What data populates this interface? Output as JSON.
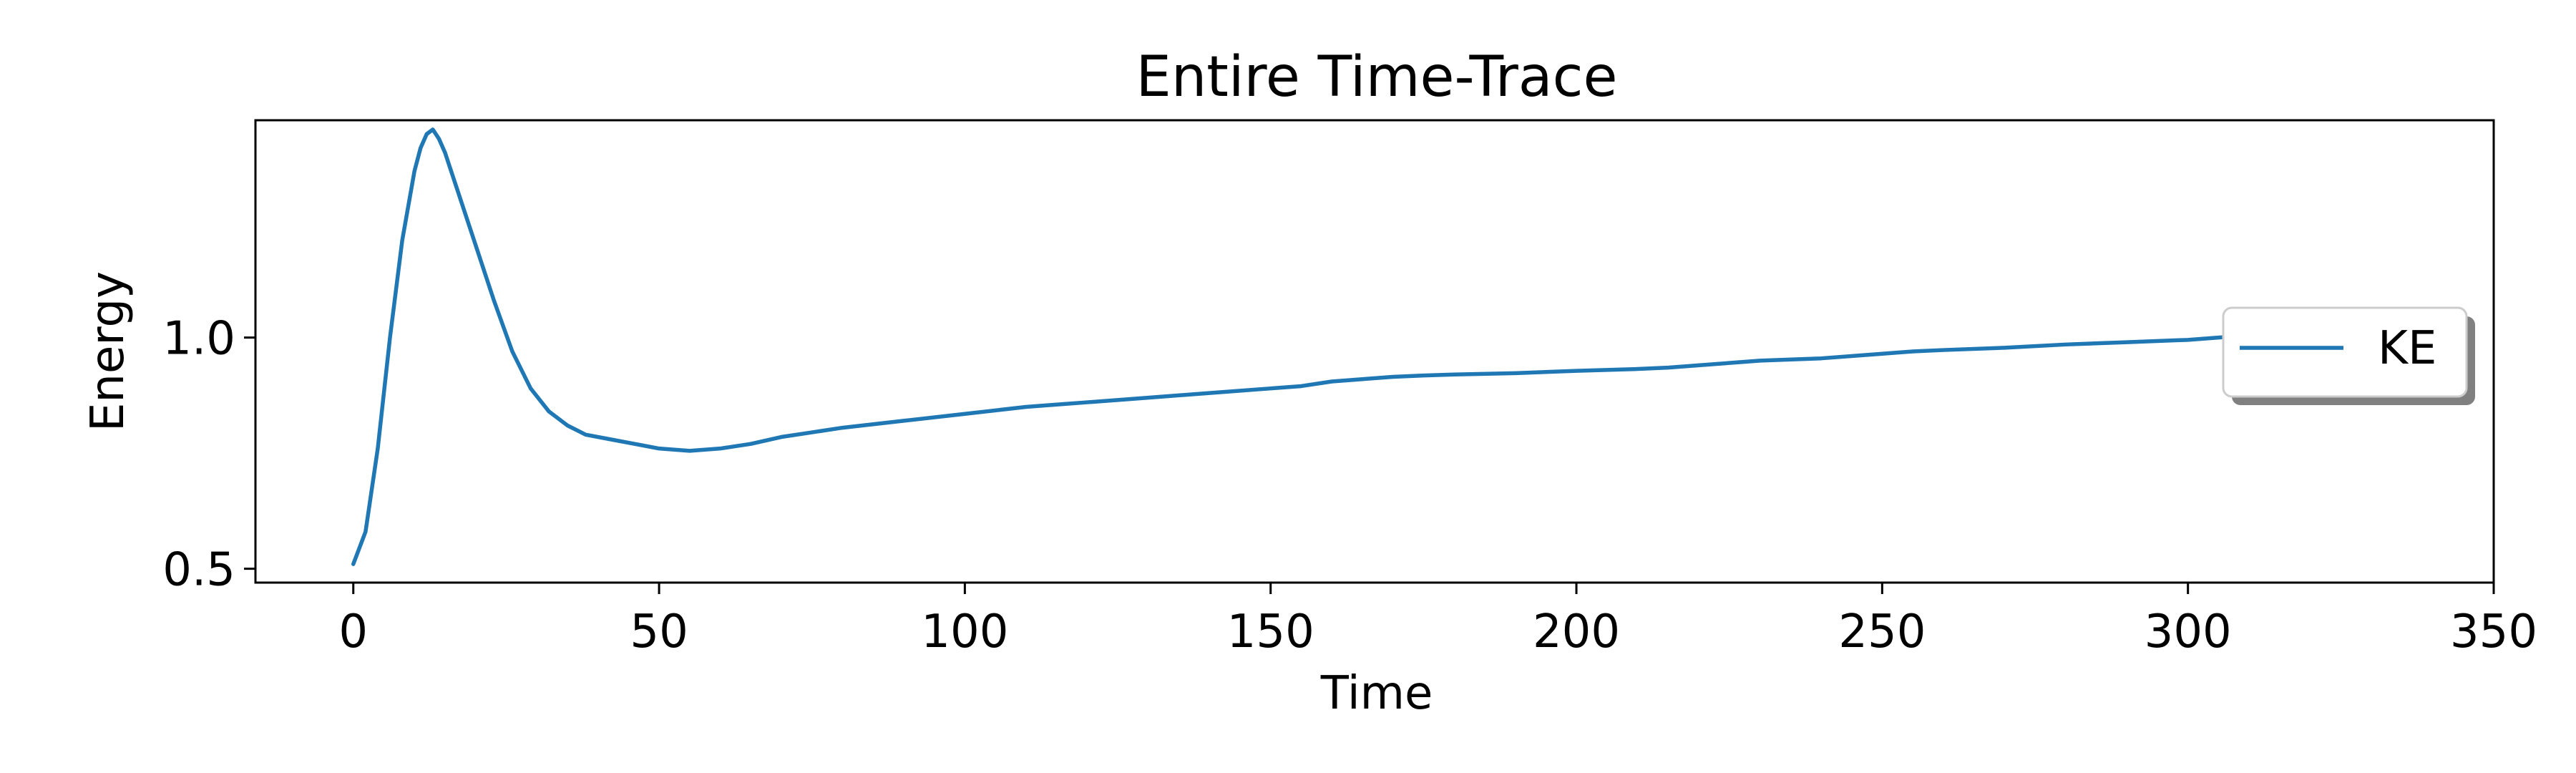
{
  "chart_data": {
    "type": "line",
    "title": "Entire Time-Trace",
    "xlabel": "Time",
    "ylabel": "Energy",
    "xlim": [
      -16,
      350
    ],
    "ylim": [
      0.47,
      1.47
    ],
    "x_ticks": [
      0,
      50,
      100,
      150,
      200,
      250,
      300,
      350
    ],
    "x_tick_labels": [
      "0",
      "50",
      "100",
      "150",
      "200",
      "250",
      "300",
      "350"
    ],
    "y_ticks": [
      0.5,
      1.0
    ],
    "y_tick_labels": [
      "0.5",
      "1.0"
    ],
    "grid": false,
    "legend": {
      "position": "right",
      "entries": [
        "KE"
      ]
    },
    "series": [
      {
        "name": "KE",
        "color": "#1f77b4",
        "x": [
          0,
          2,
          4,
          6,
          8,
          10,
          11,
          12,
          13,
          14,
          15,
          17,
          20,
          23,
          26,
          29,
          32,
          35,
          38,
          42,
          46,
          50,
          55,
          60,
          65,
          70,
          75,
          80,
          90,
          100,
          110,
          115,
          120,
          130,
          140,
          150,
          155,
          160,
          165,
          170,
          175,
          180,
          190,
          200,
          210,
          215,
          220,
          230,
          240,
          250,
          255,
          260,
          270,
          280,
          290,
          300,
          310
        ],
        "y": [
          0.51,
          0.58,
          0.76,
          1.0,
          1.21,
          1.36,
          1.41,
          1.44,
          1.45,
          1.43,
          1.4,
          1.32,
          1.2,
          1.08,
          0.97,
          0.89,
          0.84,
          0.81,
          0.79,
          0.78,
          0.77,
          0.76,
          0.755,
          0.76,
          0.77,
          0.785,
          0.795,
          0.805,
          0.82,
          0.835,
          0.85,
          0.855,
          0.86,
          0.87,
          0.88,
          0.89,
          0.895,
          0.905,
          0.91,
          0.915,
          0.918,
          0.92,
          0.923,
          0.928,
          0.932,
          0.935,
          0.94,
          0.95,
          0.955,
          0.965,
          0.97,
          0.973,
          0.978,
          0.985,
          0.99,
          0.995,
          1.005
        ]
      }
    ]
  }
}
